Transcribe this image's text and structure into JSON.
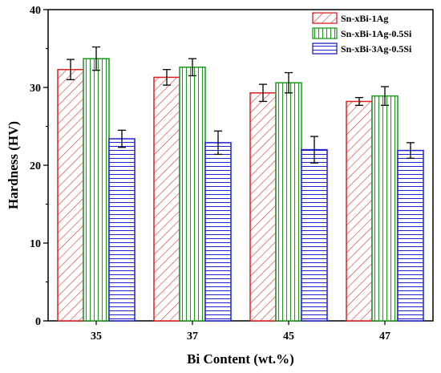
{
  "chart_data": {
    "type": "bar",
    "xlabel": "Bi Content (wt.%)",
    "ylabel": "Hardness (HV)",
    "categories": [
      "35",
      "37",
      "45",
      "47"
    ],
    "ylim": [
      0,
      40
    ],
    "yticks": [
      "0",
      "10",
      "20",
      "30",
      "40"
    ],
    "grid": false,
    "legend_position": "top-right",
    "series": [
      {
        "name": "Sn-xBi-1Ag",
        "values": [
          32.3,
          31.3,
          29.3,
          28.2
        ],
        "errors": [
          1.3,
          1.0,
          1.1,
          0.5
        ],
        "color": "#e02020",
        "pattern": "diagonal-hatch"
      },
      {
        "name": "Sn-xBi-1Ag-0.5Si",
        "values": [
          33.7,
          32.6,
          30.6,
          28.9
        ],
        "errors": [
          1.5,
          1.1,
          1.3,
          1.2
        ],
        "color": "#1a9a1a",
        "pattern": "vertical-lines"
      },
      {
        "name": "Sn-xBi-3Ag-0.5Si",
        "values": [
          23.4,
          22.9,
          22.0,
          21.9
        ],
        "errors": [
          1.1,
          1.5,
          1.7,
          1.0
        ],
        "color": "#2020d0",
        "pattern": "horizontal-lines"
      }
    ]
  }
}
